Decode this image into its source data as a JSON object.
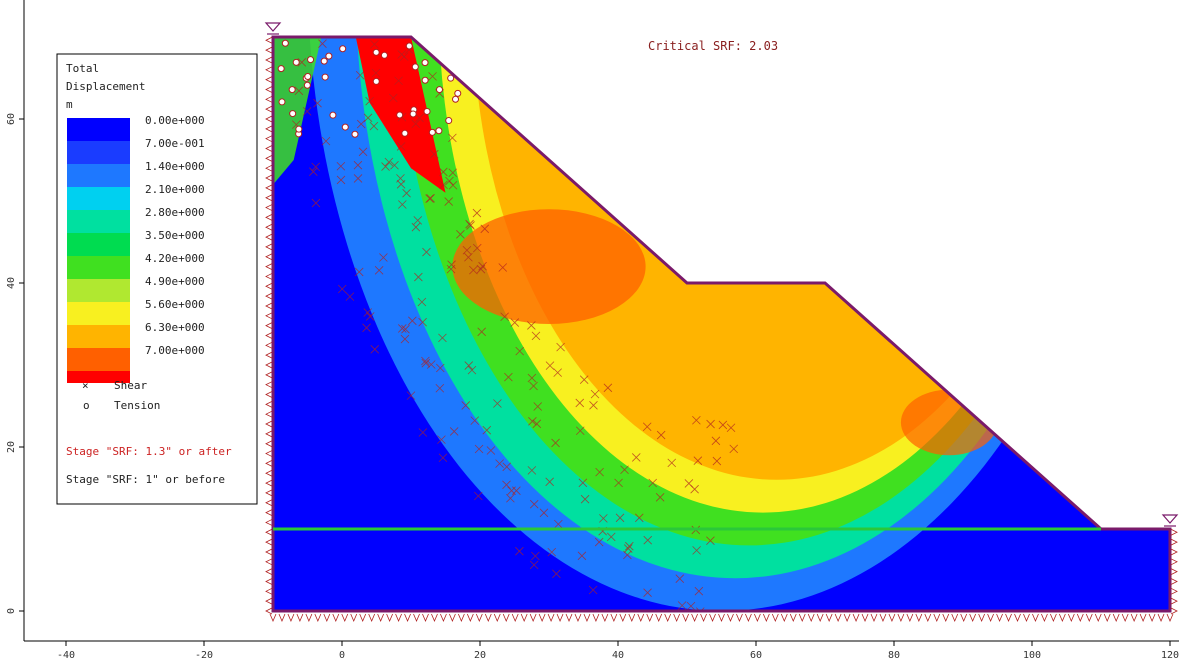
{
  "chart_data": {
    "type": "heatmap",
    "title": "",
    "annotation": "Critical SRF: 2.03",
    "xlim": [
      -42,
      121
    ],
    "ylim": [
      -3,
      72
    ],
    "x_ticks": [
      -40,
      -20,
      0,
      20,
      40,
      60,
      80,
      100,
      120
    ],
    "y_ticks": [
      0,
      20,
      40,
      60
    ],
    "grid": false,
    "legend_position": "top-left",
    "legend": {
      "title_lines": [
        "Total",
        "Displacement",
        "m"
      ],
      "levels": [
        {
          "label": "0.00e+000",
          "color": "#0000ff"
        },
        {
          "label": "7.00e-001",
          "color": "#1a3cff"
        },
        {
          "label": "1.40e+000",
          "color": "#1e78ff"
        },
        {
          "label": "2.10e+000",
          "color": "#00d0f0"
        },
        {
          "label": "2.80e+000",
          "color": "#00e0a0"
        },
        {
          "label": "3.50e+000",
          "color": "#00dc50"
        },
        {
          "label": "4.20e+000",
          "color": "#40e020"
        },
        {
          "label": "4.90e+000",
          "color": "#b0e830"
        },
        {
          "label": "5.60e+000",
          "color": "#f8f020"
        },
        {
          "label": "6.30e+000",
          "color": "#ffb400"
        },
        {
          "label": "7.00e+000",
          "color": "#ff6000"
        }
      ],
      "overflow_color": "#ff0000",
      "markers": [
        {
          "symbol": "×",
          "label": "Shear",
          "color": "#b02020"
        },
        {
          "symbol": "o",
          "label": "Tension",
          "color": "#b02020"
        }
      ],
      "stages": [
        {
          "label": "Stage \"SRF: 1.3\" or after",
          "color": "#cc2222"
        },
        {
          "label": "Stage \"SRF: 1\" or before",
          "color": "#222222"
        }
      ]
    },
    "geometry": {
      "boundary": [
        [
          -10,
          0
        ],
        [
          -10,
          70
        ],
        [
          10,
          70
        ],
        [
          50,
          40
        ],
        [
          70,
          40
        ],
        [
          110,
          10
        ],
        [
          120,
          10
        ],
        [
          120,
          0
        ]
      ],
      "layer_interface_y": 10,
      "water_table_y": 10
    },
    "contour_zones": [
      {
        "level": "0.00e+000",
        "color": "#0000ff"
      },
      {
        "level": "1.40e+000",
        "color": "#1e78ff"
      },
      {
        "level": "2.80e+000",
        "color": "#00e0a0"
      },
      {
        "level": "4.20e+000",
        "color": "#40e020"
      },
      {
        "level": "5.60e+000",
        "color": "#f8f020"
      },
      {
        "level": "6.30e+000",
        "color": "#ffb400"
      },
      {
        "level": "7.00e+000",
        "color": "#ff6000"
      }
    ],
    "colors": {
      "boundary": "#7a1a6a",
      "interface": "#2ac83a",
      "marker": "#b02020",
      "axis": "#000000"
    }
  }
}
